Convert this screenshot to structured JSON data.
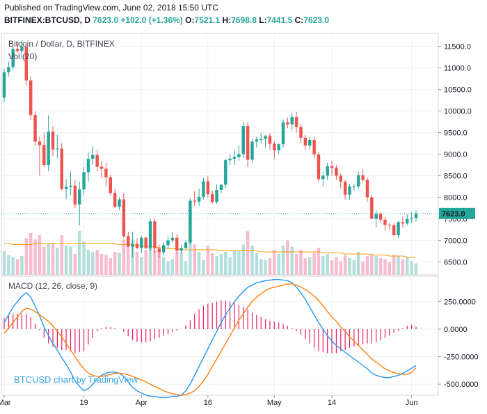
{
  "header": {
    "published": "Published on TradingView.com, June 02, 2018 15:50 UTC",
    "symbol": "BITFINEX:BTCUSD, D",
    "last": "7623.0",
    "change": "+102.0 (+1.36%)",
    "o_label": "O:",
    "o_value": "7521.1",
    "h_label": "H:",
    "h_value": "7698.8",
    "l_label": "L:",
    "l_value": "7441.5",
    "c_label": "C:",
    "c_value": "7623.0"
  },
  "price_pane": {
    "title": "Bitcoin / Dollar, D, BITFINEX",
    "volume_legend": "Vol (20)",
    "last_price_tag": "7623.0",
    "y_ticks": [
      "11500.0",
      "11000.0",
      "10500.0",
      "10000.0",
      "9500.0",
      "9000.0",
      "8500.0",
      "8000.0",
      "7500.0",
      "7000.0",
      "6500.0"
    ]
  },
  "macd_pane": {
    "legend": "MACD (12, 26, close, 9)",
    "y_ticks": [
      "250.0000",
      "0.0000",
      "-250.0000",
      "-500.0000"
    ]
  },
  "x_ticks": [
    "Mar",
    "19",
    "Apr",
    "16",
    "May",
    "14",
    "Jun"
  ],
  "watermark": "BTCUSD chart by TradingView",
  "colors": {
    "up": "#26a69a",
    "down": "#ef5350",
    "vol_up": "#b2dfdb",
    "vol_down": "#f8bbd0",
    "vol_ma": "#ff9800",
    "macd_line": "#2196f3",
    "signal_line": "#ff7f0e",
    "histogram": "#e91e63",
    "last_price_line": "#26a69a"
  },
  "chart_data": {
    "type": "candlestick",
    "dates": [
      "2018-03-01",
      "2018-03-02",
      "2018-03-03",
      "2018-03-04",
      "2018-03-05",
      "2018-03-06",
      "2018-03-07",
      "2018-03-08",
      "2018-03-09",
      "2018-03-10",
      "2018-03-11",
      "2018-03-12",
      "2018-03-13",
      "2018-03-14",
      "2018-03-15",
      "2018-03-16",
      "2018-03-17",
      "2018-03-18",
      "2018-03-19",
      "2018-03-20",
      "2018-03-21",
      "2018-03-22",
      "2018-03-23",
      "2018-03-24",
      "2018-03-25",
      "2018-03-26",
      "2018-03-27",
      "2018-03-28",
      "2018-03-29",
      "2018-03-30",
      "2018-03-31",
      "2018-04-01",
      "2018-04-02",
      "2018-04-03",
      "2018-04-04",
      "2018-04-05",
      "2018-04-06",
      "2018-04-07",
      "2018-04-08",
      "2018-04-09",
      "2018-04-10",
      "2018-04-11",
      "2018-04-12",
      "2018-04-13",
      "2018-04-14",
      "2018-04-15",
      "2018-04-16",
      "2018-04-17",
      "2018-04-18",
      "2018-04-19",
      "2018-04-20",
      "2018-04-21",
      "2018-04-22",
      "2018-04-23",
      "2018-04-24",
      "2018-04-25",
      "2018-04-26",
      "2018-04-27",
      "2018-04-28",
      "2018-04-29",
      "2018-04-30",
      "2018-05-01",
      "2018-05-02",
      "2018-05-03",
      "2018-05-04",
      "2018-05-05",
      "2018-05-06",
      "2018-05-07",
      "2018-05-08",
      "2018-05-09",
      "2018-05-10",
      "2018-05-11",
      "2018-05-12",
      "2018-05-13",
      "2018-05-14",
      "2018-05-15",
      "2018-05-16",
      "2018-05-17",
      "2018-05-18",
      "2018-05-19",
      "2018-05-20",
      "2018-05-21",
      "2018-05-22",
      "2018-05-23",
      "2018-05-24",
      "2018-05-25",
      "2018-05-26",
      "2018-05-27",
      "2018-05-28",
      "2018-05-29",
      "2018-05-30",
      "2018-05-31",
      "2018-06-01",
      "2018-06-02"
    ],
    "open": [
      10310,
      10900,
      11020,
      11440,
      11390,
      11490,
      10710,
      9910,
      9290,
      9210,
      8750,
      9520,
      9110,
      9130,
      8190,
      8240,
      8270,
      7830,
      8180,
      8580,
      8890,
      8980,
      8710,
      8660,
      8460,
      8100,
      7780,
      7950,
      7100,
      6850,
      6920,
      6820,
      7060,
      6820,
      7440,
      6810,
      6720,
      6890,
      7000,
      7060,
      6760,
      6820,
      6950,
      7920,
      7900,
      8010,
      8370,
      8070,
      7890,
      8170,
      8290,
      8860,
      8890,
      8930,
      9000,
      9650,
      8870,
      9290,
      9340,
      9350,
      9420,
      9240,
      9090,
      9230,
      9740,
      9690,
      9860,
      9630,
      9380,
      9200,
      9330,
      8990,
      8420,
      8500,
      8720,
      8680,
      8500,
      8360,
      8060,
      8250,
      8250,
      8510,
      8400,
      8000,
      7500,
      7610,
      7480,
      7360,
      7350,
      7120,
      7420,
      7390,
      7500,
      7521
    ],
    "high": [
      10980,
      11150,
      11500,
      11600,
      11650,
      11530,
      10800,
      10000,
      9400,
      9500,
      9900,
      9650,
      9450,
      9250,
      8420,
      8600,
      8400,
      8350,
      8700,
      9050,
      9180,
      9100,
      8850,
      8800,
      8520,
      8200,
      8000,
      8100,
      7200,
      7200,
      7050,
      7100,
      7100,
      7500,
      7500,
      6900,
      6950,
      7100,
      7200,
      7150,
      6900,
      7000,
      7980,
      8150,
      8200,
      8450,
      8500,
      8150,
      8300,
      8300,
      8900,
      9000,
      9100,
      9200,
      9750,
      9750,
      9350,
      9400,
      9500,
      9450,
      9480,
      9300,
      9250,
      9800,
      9850,
      9950,
      9980,
      9700,
      9450,
      9400,
      9400,
      9050,
      8600,
      8800,
      8850,
      8750,
      8550,
      8400,
      8300,
      8300,
      8600,
      8650,
      8450,
      8050,
      7700,
      7650,
      7550,
      7400,
      7400,
      7450,
      7550,
      7600,
      7650,
      7698.8
    ],
    "low": [
      10200,
      10800,
      10950,
      11350,
      11200,
      10600,
      9800,
      9200,
      8500,
      8700,
      8600,
      8950,
      8900,
      8150,
      7950,
      8050,
      7750,
      7350,
      8050,
      8350,
      8750,
      8600,
      8450,
      8250,
      8050,
      7750,
      7700,
      7050,
      6850,
      6600,
      6800,
      6700,
      6800,
      6750,
      6700,
      6600,
      6650,
      6820,
      6950,
      6680,
      6700,
      6800,
      6900,
      7800,
      7800,
      7950,
      8000,
      7850,
      7850,
      8100,
      8200,
      8750,
      8750,
      8850,
      8900,
      8700,
      8800,
      9150,
      9250,
      9150,
      9100,
      8900,
      9000,
      9150,
      9600,
      9550,
      9500,
      9250,
      9100,
      9100,
      8900,
      8350,
      8250,
      8400,
      8500,
      8400,
      8200,
      7950,
      7950,
      8150,
      8200,
      8350,
      7900,
      7500,
      7300,
      7400,
      7250,
      7250,
      7100,
      7050,
      7300,
      7350,
      7400,
      7441.5
    ],
    "close": [
      10900,
      11020,
      11440,
      11390,
      11490,
      10710,
      9910,
      9290,
      9210,
      8750,
      9520,
      9110,
      9130,
      8190,
      8240,
      8270,
      7830,
      8180,
      8580,
      8890,
      8980,
      8710,
      8660,
      8460,
      8100,
      7780,
      7950,
      7100,
      6850,
      6920,
      6820,
      7060,
      6820,
      7440,
      6810,
      6720,
      6890,
      7000,
      7060,
      6760,
      6820,
      6950,
      7920,
      7900,
      8010,
      8370,
      8070,
      7890,
      8170,
      8290,
      8860,
      8890,
      8930,
      9000,
      9650,
      8870,
      9290,
      9340,
      9350,
      9420,
      9240,
      9090,
      9230,
      9740,
      9690,
      9860,
      9630,
      9380,
      9200,
      9330,
      8990,
      8420,
      8500,
      8720,
      8680,
      8500,
      8360,
      8060,
      8250,
      8250,
      8510,
      8400,
      8000,
      7500,
      7610,
      7480,
      7360,
      7350,
      7120,
      7420,
      7390,
      7500,
      7521,
      7623
    ],
    "volume": [
      23,
      19,
      17,
      15,
      18,
      35,
      40,
      34,
      38,
      27,
      30,
      30,
      26,
      38,
      28,
      27,
      20,
      42,
      32,
      24,
      22,
      24,
      20,
      19,
      16,
      22,
      21,
      34,
      29,
      34,
      22,
      17,
      24,
      29,
      24,
      21,
      17,
      13,
      15,
      22,
      22,
      13,
      36,
      29,
      22,
      14,
      28,
      21,
      18,
      20,
      22,
      17,
      23,
      23,
      29,
      42,
      28,
      21,
      15,
      14,
      16,
      24,
      20,
      28,
      33,
      27,
      20,
      24,
      16,
      17,
      21,
      26,
      18,
      20,
      14,
      17,
      13,
      19,
      16,
      14,
      22,
      13,
      18,
      20,
      18,
      16,
      15,
      12,
      19,
      18,
      15,
      17,
      13,
      11
    ],
    "volume_ma": [
      30,
      30,
      29,
      29,
      29,
      29,
      29,
      30,
      30,
      30,
      30,
      30,
      30,
      30,
      30,
      30,
      30,
      30,
      30,
      30,
      30,
      30,
      30,
      30,
      30,
      30,
      29,
      29,
      29,
      29,
      28,
      28,
      27,
      27,
      27,
      26,
      26,
      25,
      25,
      25,
      24,
      24,
      24,
      24,
      24,
      24,
      24,
      24,
      24,
      23,
      23,
      23,
      23,
      23,
      23,
      23,
      23,
      23,
      22,
      22,
      22,
      22,
      22,
      22,
      22,
      22,
      22,
      22,
      22,
      22,
      22,
      22,
      21,
      21,
      21,
      21,
      21,
      20,
      20,
      20,
      20,
      20,
      20,
      19,
      19,
      19,
      19,
      18,
      18,
      18,
      18,
      17,
      17,
      17
    ],
    "macd": [
      60,
      130,
      200,
      250,
      300,
      330,
      290,
      210,
      120,
      20,
      -60,
      -130,
      -190,
      -260,
      -320,
      -390,
      -470,
      -520,
      -560,
      -540,
      -500,
      -450,
      -420,
      -400,
      -390,
      -390,
      -400,
      -430,
      -480,
      -530,
      -560,
      -580,
      -600,
      -610,
      -610,
      -620,
      -620,
      -620,
      -610,
      -610,
      -600,
      -560,
      -500,
      -420,
      -340,
      -260,
      -180,
      -100,
      -20,
      60,
      130,
      190,
      250,
      300,
      340,
      380,
      400,
      420,
      430,
      440,
      445,
      450,
      450,
      445,
      440,
      420,
      380,
      330,
      270,
      200,
      130,
      60,
      0,
      -60,
      -110,
      -150,
      -180,
      -210,
      -240,
      -270,
      -300,
      -330,
      -360,
      -400,
      -420,
      -430,
      -440,
      -440,
      -430,
      -420,
      -400,
      -380,
      -355,
      -330
    ],
    "signal": [
      -40,
      10,
      60,
      110,
      160,
      190,
      180,
      160,
      130,
      100,
      70,
      30,
      -20,
      -70,
      -130,
      -190,
      -250,
      -310,
      -360,
      -400,
      -420,
      -430,
      -430,
      -420,
      -410,
      -400,
      -400,
      -405,
      -415,
      -430,
      -445,
      -460,
      -480,
      -500,
      -520,
      -540,
      -560,
      -575,
      -585,
      -595,
      -600,
      -595,
      -580,
      -560,
      -520,
      -470,
      -410,
      -340,
      -270,
      -200,
      -130,
      -60,
      10,
      80,
      140,
      200,
      250,
      290,
      320,
      350,
      370,
      380,
      390,
      400,
      410,
      410,
      400,
      380,
      360,
      330,
      300,
      260,
      210,
      160,
      110,
      70,
      20,
      -20,
      -70,
      -110,
      -150,
      -190,
      -230,
      -270,
      -300,
      -330,
      -360,
      -380,
      -395,
      -405,
      -410,
      -410,
      -395,
      -350
    ],
    "histogram": [
      100,
      120,
      140,
      140,
      140,
      140,
      110,
      50,
      -10,
      -80,
      -130,
      -160,
      -170,
      -190,
      -190,
      -200,
      -220,
      -210,
      -200,
      -140,
      -80,
      -20,
      10,
      20,
      20,
      10,
      0,
      -25,
      -65,
      -100,
      -115,
      -120,
      -120,
      -110,
      -90,
      -80,
      -60,
      -45,
      -25,
      -15,
      0,
      35,
      80,
      140,
      180,
      210,
      230,
      240,
      250,
      260,
      260,
      250,
      240,
      220,
      200,
      180,
      150,
      130,
      110,
      90,
      75,
      70,
      60,
      45,
      30,
      10,
      -20,
      -50,
      -90,
      -130,
      -170,
      -200,
      -210,
      -220,
      -220,
      -220,
      -200,
      -190,
      -170,
      -160,
      -150,
      -140,
      -130,
      -130,
      -120,
      -100,
      -80,
      -60,
      -35,
      -15,
      10,
      30,
      40,
      20
    ],
    "price_range": [
      6200,
      11800
    ],
    "macd_range": [
      -600,
      480
    ],
    "grid": true,
    "legend_placement": "top-left"
  }
}
